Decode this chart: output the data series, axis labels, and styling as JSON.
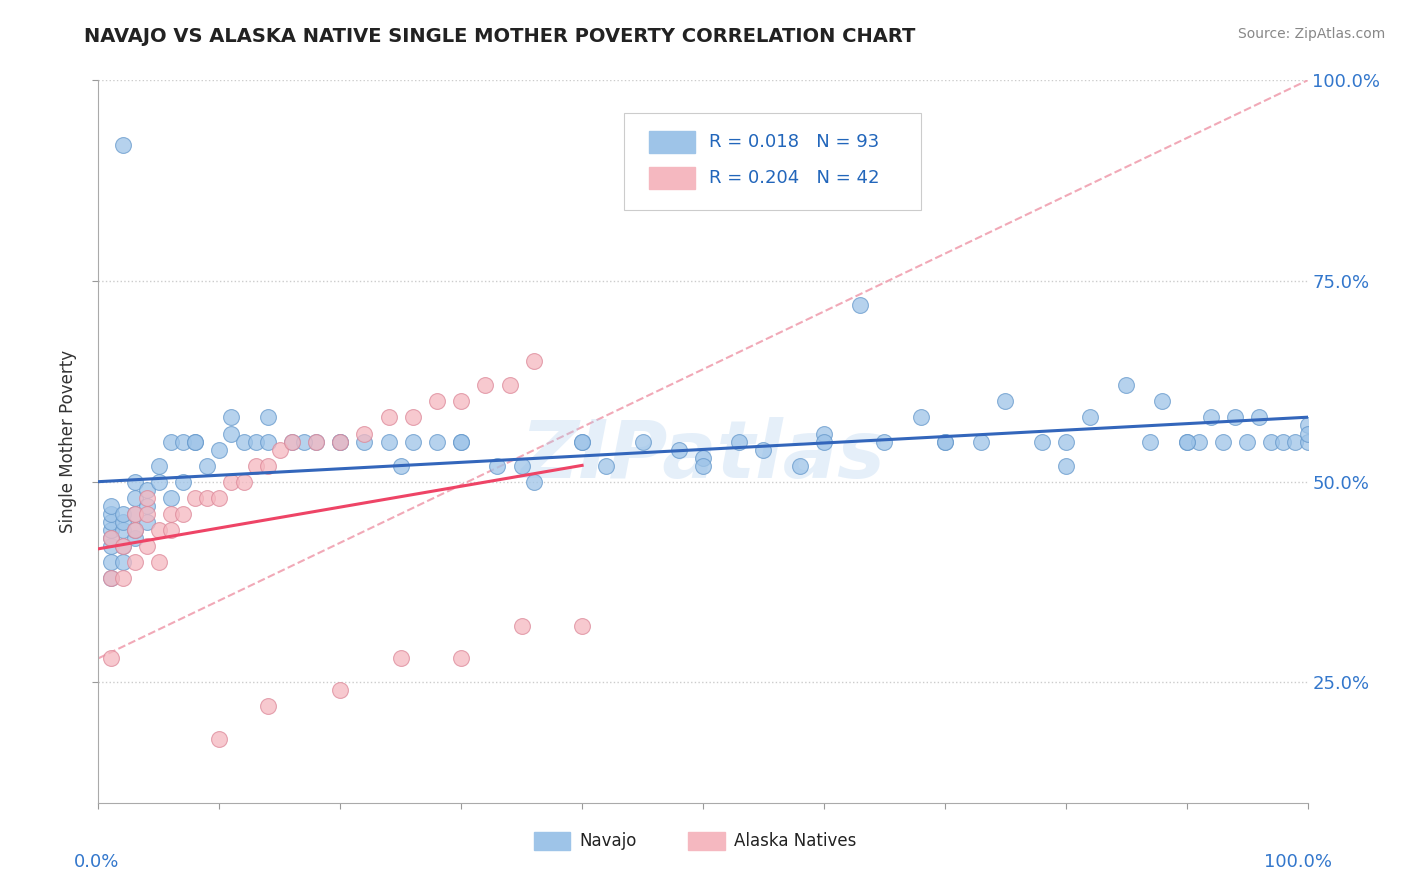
{
  "title": "NAVAJO VS ALASKA NATIVE SINGLE MOTHER POVERTY CORRELATION CHART",
  "source": "Source: ZipAtlas.com",
  "ylabel": "Single Mother Poverty",
  "legend_navajo_r": "0.018",
  "legend_navajo_n": "93",
  "legend_alaska_r": "0.204",
  "legend_alaska_n": "42",
  "navajo_color": "#9ec4e8",
  "alaska_color": "#f5b8c0",
  "navajo_edge_color": "#6699cc",
  "alaska_edge_color": "#dd8899",
  "navajo_line_color": "#3366bb",
  "alaska_line_color": "#ee4466",
  "diag_line_color": "#f5b8c0",
  "background_color": "#ffffff",
  "watermark": "ZIPatlas",
  "xlim": [
    0.0,
    1.0
  ],
  "ylim": [
    0.1,
    1.0
  ],
  "yticks": [
    0.25,
    0.5,
    0.75,
    1.0
  ],
  "ytick_labels": [
    "25.0%",
    "50.0%",
    "75.0%",
    "100.0%"
  ],
  "navajo_x": [
    0.01,
    0.01,
    0.01,
    0.01,
    0.01,
    0.01,
    0.01,
    0.01,
    0.02,
    0.02,
    0.02,
    0.02,
    0.02,
    0.02,
    0.03,
    0.03,
    0.03,
    0.03,
    0.03,
    0.04,
    0.04,
    0.04,
    0.05,
    0.05,
    0.06,
    0.06,
    0.07,
    0.07,
    0.08,
    0.09,
    0.1,
    0.11,
    0.12,
    0.13,
    0.14,
    0.16,
    0.18,
    0.2,
    0.22,
    0.24,
    0.26,
    0.28,
    0.3,
    0.33,
    0.36,
    0.4,
    0.42,
    0.45,
    0.48,
    0.5,
    0.53,
    0.55,
    0.58,
    0.6,
    0.63,
    0.65,
    0.68,
    0.7,
    0.73,
    0.75,
    0.78,
    0.8,
    0.82,
    0.85,
    0.87,
    0.88,
    0.9,
    0.91,
    0.92,
    0.93,
    0.94,
    0.95,
    0.96,
    0.97,
    0.98,
    0.99,
    1.0,
    1.0,
    1.0,
    0.08,
    0.11,
    0.14,
    0.17,
    0.2,
    0.25,
    0.3,
    0.35,
    0.4,
    0.5,
    0.6,
    0.7,
    0.8,
    0.9
  ],
  "navajo_y": [
    0.38,
    0.4,
    0.42,
    0.43,
    0.44,
    0.45,
    0.46,
    0.47,
    0.4,
    0.42,
    0.44,
    0.45,
    0.46,
    0.92,
    0.43,
    0.44,
    0.46,
    0.48,
    0.5,
    0.45,
    0.47,
    0.49,
    0.5,
    0.52,
    0.48,
    0.55,
    0.5,
    0.55,
    0.55,
    0.52,
    0.54,
    0.56,
    0.55,
    0.55,
    0.58,
    0.55,
    0.55,
    0.55,
    0.55,
    0.55,
    0.55,
    0.55,
    0.55,
    0.52,
    0.5,
    0.55,
    0.52,
    0.55,
    0.54,
    0.53,
    0.55,
    0.54,
    0.52,
    0.56,
    0.72,
    0.55,
    0.58,
    0.55,
    0.55,
    0.6,
    0.55,
    0.55,
    0.58,
    0.62,
    0.55,
    0.6,
    0.55,
    0.55,
    0.58,
    0.55,
    0.58,
    0.55,
    0.58,
    0.55,
    0.55,
    0.55,
    0.55,
    0.57,
    0.56,
    0.55,
    0.58,
    0.55,
    0.55,
    0.55,
    0.52,
    0.55,
    0.52,
    0.55,
    0.52,
    0.55,
    0.55,
    0.52,
    0.55
  ],
  "alaska_x": [
    0.01,
    0.01,
    0.01,
    0.02,
    0.02,
    0.03,
    0.03,
    0.03,
    0.04,
    0.04,
    0.04,
    0.05,
    0.05,
    0.06,
    0.06,
    0.07,
    0.08,
    0.09,
    0.1,
    0.11,
    0.12,
    0.13,
    0.14,
    0.15,
    0.16,
    0.18,
    0.2,
    0.22,
    0.24,
    0.26,
    0.28,
    0.3,
    0.32,
    0.34,
    0.36,
    0.1,
    0.14,
    0.2,
    0.25,
    0.3,
    0.35,
    0.4
  ],
  "alaska_y": [
    0.38,
    0.43,
    0.28,
    0.38,
    0.42,
    0.4,
    0.44,
    0.46,
    0.42,
    0.46,
    0.48,
    0.4,
    0.44,
    0.44,
    0.46,
    0.46,
    0.48,
    0.48,
    0.48,
    0.5,
    0.5,
    0.52,
    0.52,
    0.54,
    0.55,
    0.55,
    0.55,
    0.56,
    0.58,
    0.58,
    0.6,
    0.6,
    0.62,
    0.62,
    0.65,
    0.18,
    0.22,
    0.24,
    0.28,
    0.28,
    0.32,
    0.32
  ]
}
